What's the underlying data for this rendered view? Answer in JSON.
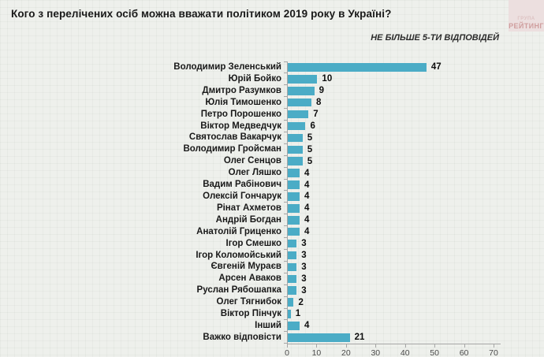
{
  "title": "Кого з перелічених осіб можна вважати політиком 2019 року в Україні?",
  "subtitle": "НЕ БІЛЬШЕ 5-ТИ ВІДПОВІДЕЙ",
  "logo": {
    "line1": "ГРУПА",
    "line2": "РЕЙТИНГ",
    "bg_color": "#ecdfdf",
    "text_color": "#cf9e9e"
  },
  "chart_data": {
    "type": "bar",
    "orientation": "horizontal",
    "title": "Кого з перелічених осіб можна вважати політиком 2019 року в Україні?",
    "subtitle": "НЕ БІЛЬШЕ 5-ТИ ВІДПОВІДЕЙ",
    "categories": [
      "Володимир Зеленський",
      "Юрій Бойко",
      "Дмитро Разумков",
      "Юлія Тимошенко",
      "Петро Порошенко",
      "Віктор Медведчук",
      "Святослав Вакарчук",
      "Володимир Гройсман",
      "Олег Сенцов",
      "Олег Ляшко",
      "Вадим Рабінович",
      "Олексій Гончарук",
      "Рінат Ахметов",
      "Андрій Богдан",
      "Анатолій Гриценко",
      "Ігор Смешко",
      "Ігор Коломойський",
      "Євгеній Мураєв",
      "Арсен Аваков",
      "Руслан Рябошапка",
      "Олег Тягнибок",
      "Віктор Пінчук",
      "Інший",
      "Важко відповісти"
    ],
    "values": [
      47,
      10,
      9,
      8,
      7,
      6,
      5,
      5,
      5,
      4,
      4,
      4,
      4,
      4,
      4,
      3,
      3,
      3,
      3,
      3,
      2,
      1,
      4,
      21
    ],
    "value_labels": true,
    "xlim": [
      0,
      70
    ],
    "xticks": [
      0,
      10,
      20,
      30,
      40,
      50,
      60,
      70
    ],
    "bar_color": "#4BACC6",
    "axis_color": "#a6a6a6",
    "grid": false,
    "legend": "none"
  }
}
